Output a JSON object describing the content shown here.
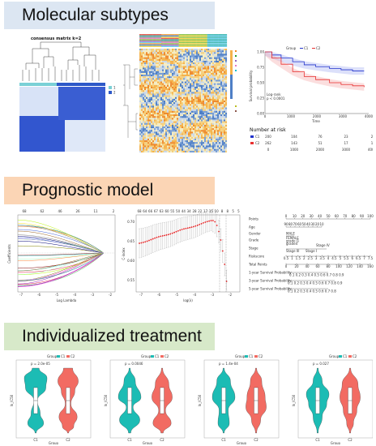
{
  "sections": {
    "subtypes": "Molecular subtypes",
    "model": "Prognostic model",
    "treatment": "Individualized treatment"
  },
  "consensus": {
    "title": "consensus matrix k=2",
    "legend": [
      "1",
      "2"
    ]
  },
  "survival": {
    "legend_title": "Group",
    "legend_entries": [
      "C1",
      "C2"
    ],
    "logrank_label": "Log-rank",
    "pvalue": "p < 0.0001",
    "xlabel": "Time",
    "ylabel": "Survival probability",
    "xticks": [
      "0",
      "1000",
      "2000",
      "3000",
      "4000"
    ],
    "yticks": [
      "1.00",
      "0.75",
      "0.50",
      "0.25",
      "0.00"
    ],
    "risk_title": "Number at risk",
    "risk_rows": [
      {
        "label": "C1",
        "values": [
          "200",
          "104",
          "76",
          "23",
          "2"
        ]
      },
      {
        "label": "C2",
        "values": [
          "262",
          "143",
          "51",
          "17",
          "1"
        ]
      }
    ],
    "colors": {
      "C1": "#2233cc",
      "C2": "#e83030"
    }
  },
  "lasso": {
    "top_ticks": [
      "68",
      "62",
      "46",
      "26",
      "11",
      "2"
    ],
    "xlabel": "Log Lambda",
    "ylabel": "Coefficients",
    "xticks": [
      "-7",
      "-6",
      "-5",
      "-4",
      "-3",
      "-2"
    ]
  },
  "cv": {
    "top_ticks": [
      "68",
      "64",
      "66",
      "67",
      "63",
      "60",
      "55",
      "50",
      "44",
      "34",
      "28",
      "22",
      "17",
      "15",
      "10",
      "8",
      "8",
      "5",
      "5"
    ],
    "xlabel": "log(λ)",
    "ylabel": "C-index",
    "yticks": [
      "0.70",
      "0.65",
      "0.60",
      "0.55"
    ],
    "xticks": [
      "-7",
      "-6",
      "-5",
      "-4",
      "-3",
      "-2"
    ]
  },
  "nomogram": {
    "rows": [
      "Points",
      "Age",
      "Gender",
      "Grade",
      "Stage",
      "Riskscore",
      "Total Points",
      "1-year Survival Probability",
      "3-year Survival Probability",
      "5-year Survival Probability"
    ],
    "points_ticks": [
      "0",
      "10",
      "20",
      "30",
      "40",
      "50",
      "60",
      "70",
      "80",
      "90",
      "100"
    ],
    "age_ticks": [
      "90",
      "80",
      "70",
      "60",
      "50",
      "40",
      "30",
      "20",
      "10"
    ],
    "gender_ticks": [
      "MALE"
    ],
    "grade_ticks": [
      "FEMALE",
      "grade G",
      "grade4"
    ],
    "stage_ticks": [
      "Stage III",
      "Stage IV",
      "Stage I"
    ],
    "risk_ticks": [
      "0.5",
      "1",
      "1.5",
      "2",
      "2.5",
      "3",
      "3.5",
      "4",
      "4.5",
      "5",
      "5.5",
      "6",
      "6.5",
      "7",
      "7.5"
    ],
    "total_ticks": [
      "0",
      "20",
      "40",
      "60",
      "80",
      "100",
      "120",
      "140",
      "160"
    ],
    "surv1": "0.1  0.2 0.3 0.4 0.5 0.6 0.7  0.8  0.9",
    "surv3": "0.1   0.2 0.3 0.4 0.5 0.6 0.7  0.8  0.9",
    "surv5": "0.1  0.2 0.3 0.4 0.5 0.6 0.7  0.8"
  },
  "violins": [
    {
      "pvalue": "p = 2.0e-05",
      "xlabel": "Group",
      "ylabel": "ln_IC50"
    },
    {
      "pvalue": "p = 0.0046",
      "xlabel": "Group",
      "ylabel": "ln_IC50"
    },
    {
      "pvalue": "p = 1.4e-04",
      "xlabel": "Group",
      "ylabel": "ln_IC50"
    },
    {
      "pvalue": "p = 0.027",
      "xlabel": "Group",
      "ylabel": "ln_IC50"
    }
  ],
  "violin_legend": {
    "title": "Group",
    "entries": [
      "C1",
      "C2"
    ]
  },
  "violin_groups": [
    "C1",
    "C2"
  ],
  "colors": {
    "teal": "#1cbcb4",
    "salmon": "#f26b62",
    "heat_low": "#4e7fc6",
    "heat_high": "#f5b34c"
  }
}
